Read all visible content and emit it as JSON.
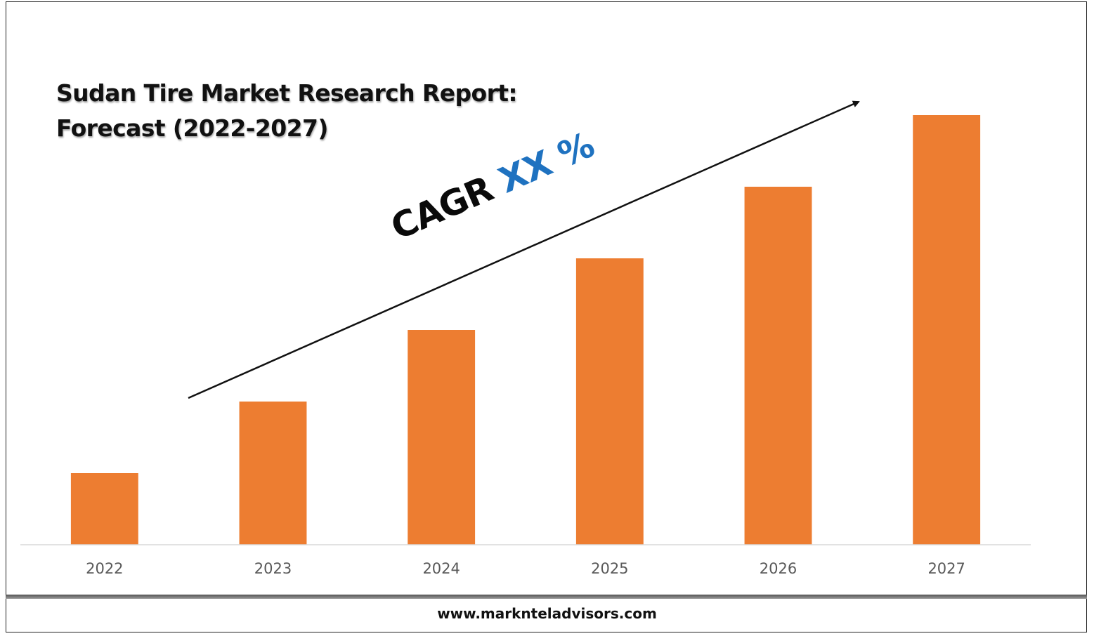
{
  "chart_data": {
    "type": "bar",
    "title_lines": [
      "Sudan Tire Market Research Report:",
      "Forecast (2022-2027)"
    ],
    "categories": [
      "2022",
      "2023",
      "2024",
      "2025",
      "2026",
      "2027"
    ],
    "values": [
      1,
      2,
      3,
      4,
      5,
      6
    ],
    "ylim": [
      0,
      6
    ],
    "bar_color": "#ed7d31",
    "grid": false,
    "annotation": {
      "label": "CAGR",
      "value": "XX %",
      "value_color": "#1f72c0",
      "arrow": "upward-trend"
    }
  },
  "footer": {
    "url": "www.marknteladvisors.com"
  }
}
